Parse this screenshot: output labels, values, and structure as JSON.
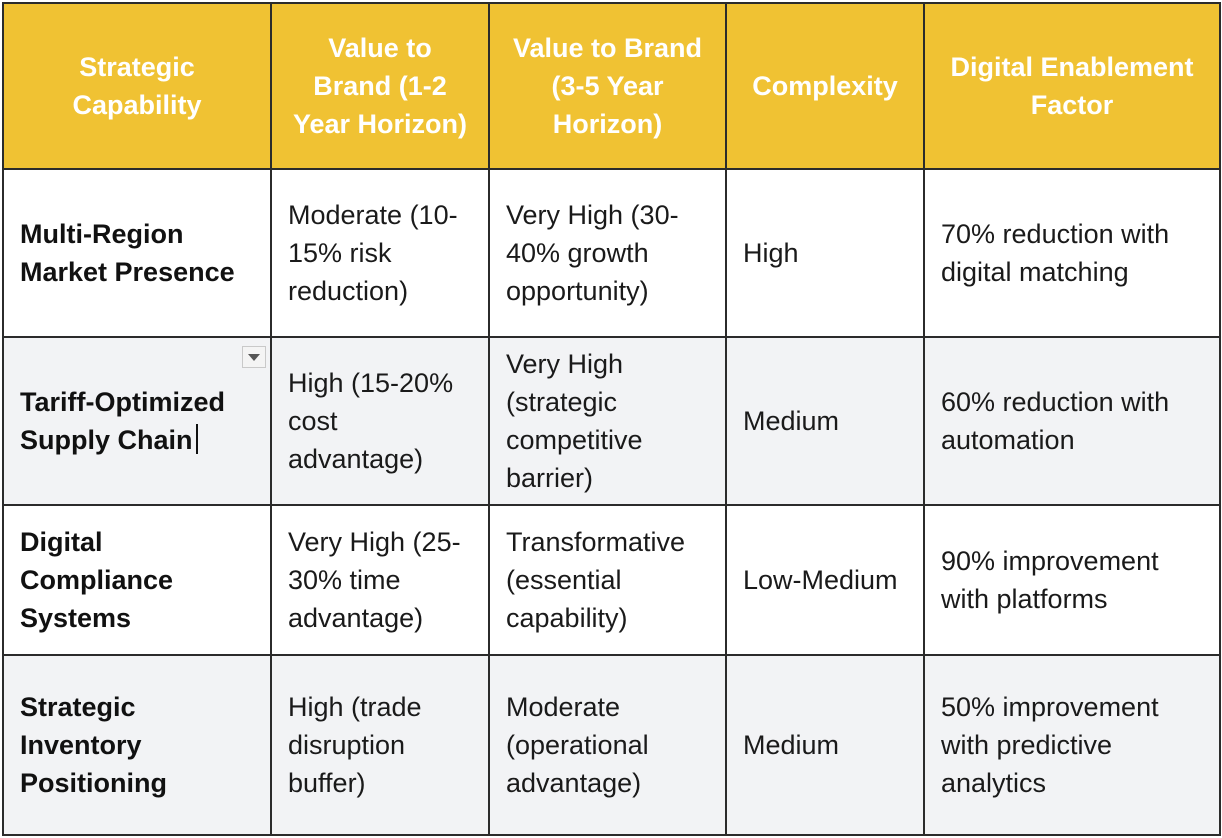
{
  "table": {
    "headers": [
      "Strategic Capability",
      "Value to Brand (1-2 Year Horizon)",
      "Value to Brand (3-5 Year Horizon)",
      "Complexity",
      "Digital Enablement Factor"
    ],
    "rows": [
      {
        "capability": "Multi-Region Market Presence",
        "short_term": "Moderate (10-15% risk reduction)",
        "long_term": "Very High (30-40% growth opportunity)",
        "complexity": "High",
        "digital_factor": "70% reduction with digital matching"
      },
      {
        "capability": "Tariff-Optimized Supply Chain",
        "short_term": "High (15-20% cost advantage)",
        "long_term": "Very High (strategic competitive barrier)",
        "complexity": "Medium",
        "digital_factor": "60% reduction with automation"
      },
      {
        "capability": "Digital Compliance Systems",
        "short_term": "Very High (25-30% time advantage)",
        "long_term": "Transformative (essential capability)",
        "complexity": "Low-Medium",
        "digital_factor": "90% improvement with platforms"
      },
      {
        "capability": "Strategic Inventory Positioning",
        "short_term": "High (trade disruption buffer)",
        "long_term": "Moderate (operational advantage)",
        "complexity": "Medium",
        "digital_factor": "50% improvement with predictive analytics"
      }
    ]
  },
  "colors": {
    "header_bg": "#f0c233",
    "header_text": "#ffffff",
    "border": "#2b2b2b",
    "row_alt_bg": "#f2f3f5"
  },
  "icons": {
    "cell_menu": "chevron-down-icon"
  }
}
